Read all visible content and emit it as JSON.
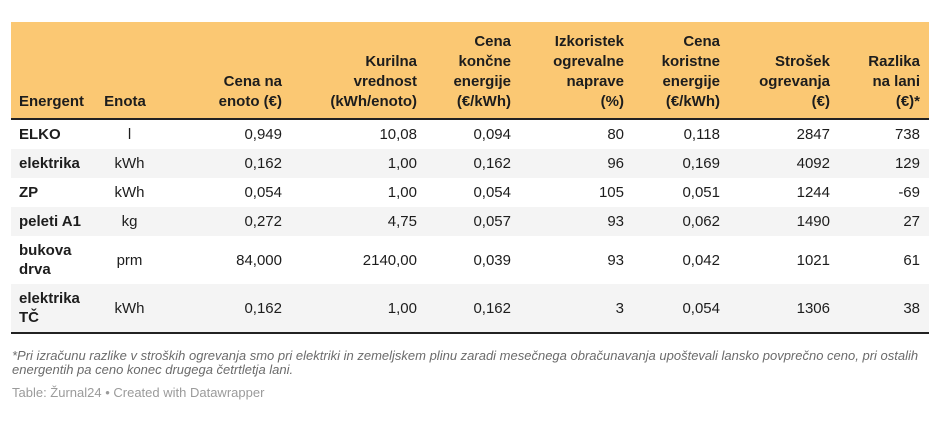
{
  "chart_data": {
    "type": "table",
    "columns": [
      {
        "label": "Energent",
        "align": "left"
      },
      {
        "label": "Enota",
        "align": "center"
      },
      {
        "label": "Cena na\nenoto (€)",
        "align": "right"
      },
      {
        "label": "Kurilna\nvrednost\n(kWh/enoto)",
        "align": "right"
      },
      {
        "label": "Cena\nkončne\nenergije\n(€/kWh)",
        "align": "right"
      },
      {
        "label": "Izkoristek\nogrevalne\nnaprave\n(%)",
        "align": "right"
      },
      {
        "label": "Cena\nkoristne\nenergije\n(€/kWh)",
        "align": "right"
      },
      {
        "label": "Strošek\nogrevanja\n(€)",
        "align": "right"
      },
      {
        "label": "Razlika\nna lani\n(€)*",
        "align": "right"
      }
    ],
    "rows": [
      [
        "ELKO",
        "l",
        "0,949",
        "10,08",
        "0,094",
        "80",
        "0,118",
        "2847",
        "738"
      ],
      [
        "elektrika",
        "kWh",
        "0,162",
        "1,00",
        "0,162",
        "96",
        "0,169",
        "4092",
        "129"
      ],
      [
        "ZP",
        "kWh",
        "0,054",
        "1,00",
        "0,054",
        "105",
        "0,051",
        "1244",
        "-69"
      ],
      [
        "peleti A1",
        "kg",
        "0,272",
        "4,75",
        "0,057",
        "93",
        "0,062",
        "1490",
        "27"
      ],
      [
        "bukova\ndrva",
        "prm",
        "84,000",
        "2140,00",
        "0,039",
        "93",
        "0,042",
        "1021",
        "61"
      ],
      [
        "elektrika\nTČ",
        "kWh",
        "0,162",
        "1,00",
        "0,162",
        "3",
        "0,054",
        "1306",
        "38"
      ]
    ]
  },
  "footnote": "*Pri izračunu razlike v stroških ogrevanja smo pri elektriki in zemeljskem plinu zaradi mesečnega obračunavanja upoštevali lansko povprečno ceno, pri ostalih\nenergentih pa ceno konec drugega četrtletja lani.",
  "caption": "Table: Žurnal24 • Created with Datawrapper",
  "colors": {
    "header_bg": "#FBC873",
    "stripe_bg": "#F4F4F4",
    "border_dark": "#222222"
  }
}
